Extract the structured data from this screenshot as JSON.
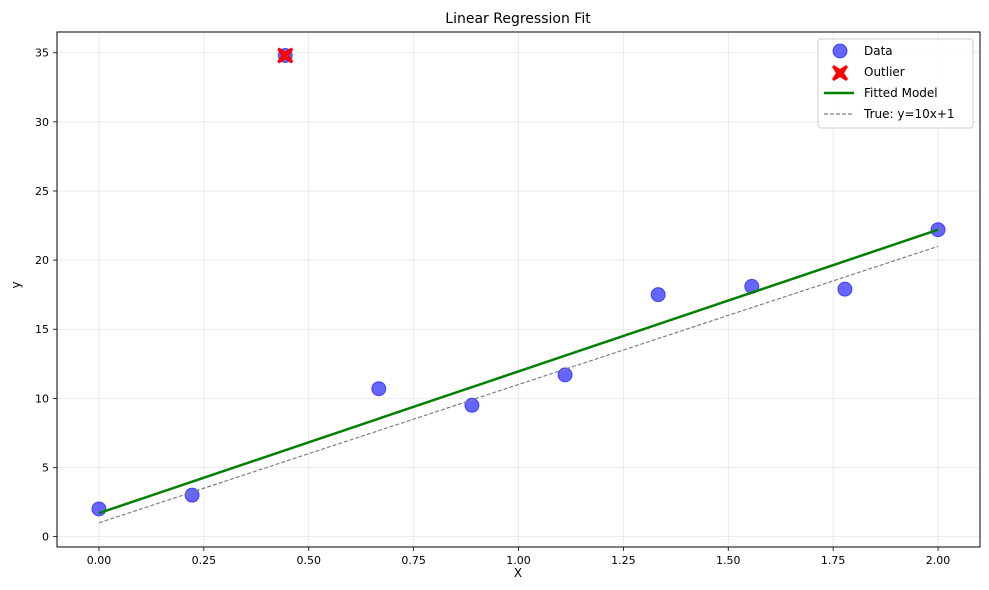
{
  "chart_data": {
    "type": "scatter",
    "title": "Linear Regression Fit",
    "xlabel": "X",
    "ylabel": "y",
    "xlim": [
      -0.1,
      2.1
    ],
    "ylim": [
      -0.75,
      36.5
    ],
    "grid": true,
    "legend_position": "upper right",
    "x_ticks": [
      0.0,
      0.25,
      0.5,
      0.75,
      1.0,
      1.25,
      1.5,
      1.75,
      2.0
    ],
    "x_tick_labels": [
      "0.00",
      "0.25",
      "0.50",
      "0.75",
      "1.00",
      "1.25",
      "1.50",
      "1.75",
      "2.00"
    ],
    "y_ticks": [
      0,
      5,
      10,
      15,
      20,
      25,
      30,
      35
    ],
    "y_tick_labels": [
      "0",
      "5",
      "10",
      "15",
      "20",
      "25",
      "30",
      "35"
    ],
    "series": [
      {
        "name": "Data",
        "kind": "scatter",
        "marker": "circle",
        "color": "#0000ff",
        "alpha": 0.6,
        "x": [
          0.0,
          0.222,
          0.444,
          0.667,
          0.889,
          1.111,
          1.333,
          1.556,
          1.778,
          2.0
        ],
        "y": [
          2.0,
          3.0,
          34.8,
          10.7,
          9.5,
          11.7,
          17.5,
          18.1,
          17.9,
          22.2
        ]
      },
      {
        "name": "Outlier",
        "kind": "scatter",
        "marker": "X",
        "color": "#ff0000",
        "x": [
          0.444
        ],
        "y": [
          34.8
        ]
      },
      {
        "name": "Fitted Model",
        "kind": "line",
        "color": "#008000",
        "style": "solid",
        "x": [
          0.0,
          2.0
        ],
        "y": [
          1.7,
          22.2
        ]
      },
      {
        "name": "True: y=10x+1",
        "kind": "line",
        "color": "#808080",
        "style": "dashed",
        "x": [
          0.0,
          2.0
        ],
        "y": [
          1.0,
          21.0
        ]
      }
    ]
  }
}
